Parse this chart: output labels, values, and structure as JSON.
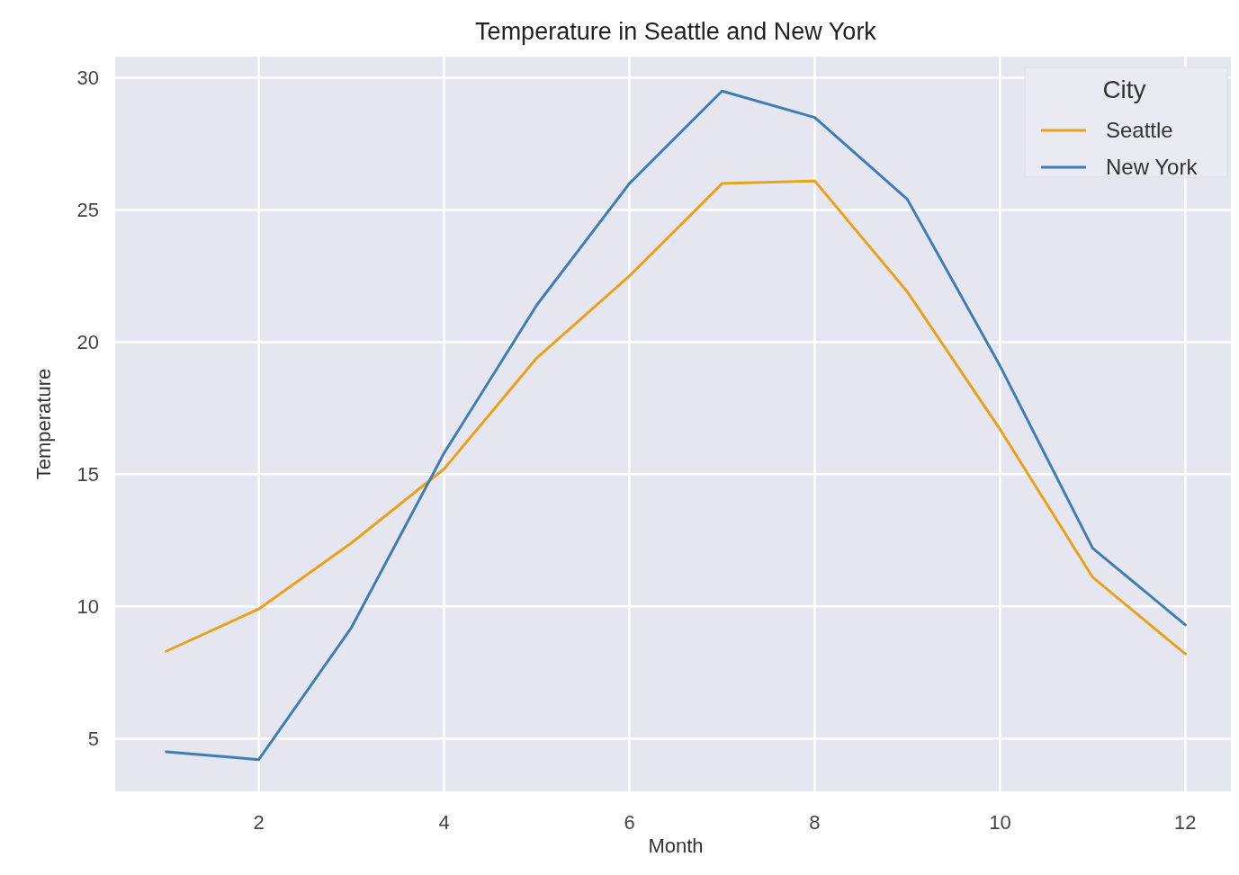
{
  "chart_data": {
    "type": "line",
    "title": "Temperature in Seattle and New York",
    "xlabel": "Month",
    "ylabel": "Temperature",
    "legend_title": "City",
    "x": [
      1,
      2,
      3,
      4,
      5,
      6,
      7,
      8,
      9,
      10,
      11,
      12
    ],
    "series": [
      {
        "name": "Seattle",
        "color": "#e8a21c",
        "values": [
          8.3,
          9.9,
          12.4,
          15.2,
          19.4,
          22.5,
          26.0,
          26.1,
          21.9,
          16.7,
          11.1,
          8.2
        ]
      },
      {
        "name": "New York",
        "color": "#3f7db3",
        "values": [
          4.5,
          4.2,
          9.2,
          15.8,
          21.4,
          26.0,
          29.5,
          28.5,
          25.4,
          19.1,
          12.2,
          9.3
        ]
      }
    ],
    "xlim": [
      0.45,
      12.55
    ],
    "ylim": [
      3.0,
      30.8
    ],
    "xticks": [
      2,
      4,
      6,
      8,
      10,
      12
    ],
    "yticks": [
      5,
      10,
      15,
      20,
      25,
      30
    ],
    "grid": true,
    "legend": "top right",
    "marker": "none",
    "line_style": "solid"
  }
}
